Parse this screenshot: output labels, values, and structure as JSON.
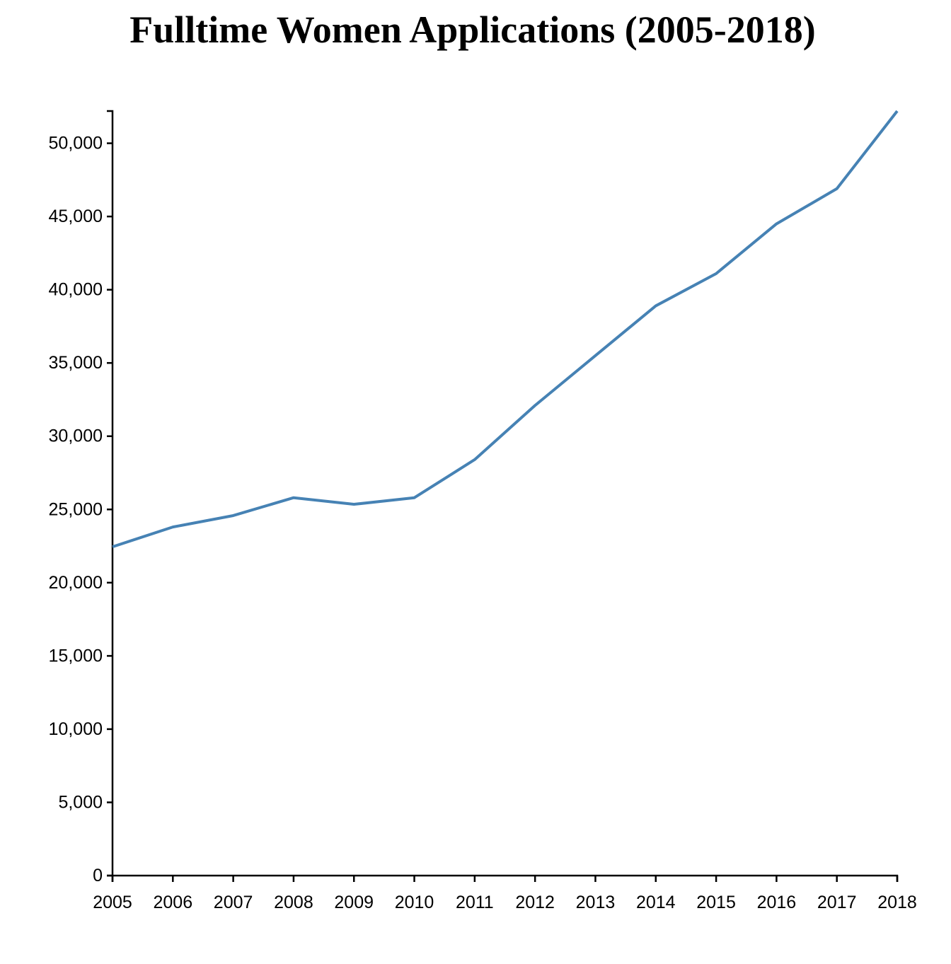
{
  "chart_data": {
    "type": "line",
    "title": "Fulltime Women Applications (2005-2018)",
    "xlabel": "",
    "ylabel": "",
    "x": [
      2005,
      2006,
      2007,
      2008,
      2009,
      2010,
      2011,
      2012,
      2013,
      2014,
      2015,
      2016,
      2017,
      2018
    ],
    "series": [
      {
        "values": [
          22450,
          23800,
          24580,
          25800,
          25350,
          25800,
          28400,
          32100,
          35500,
          38900,
          41100,
          44500,
          46900,
          52200
        ]
      }
    ],
    "xlim": [
      2005,
      2018
    ],
    "ylim": [
      0,
      52200
    ],
    "yticks": [
      0,
      5000,
      10000,
      15000,
      20000,
      25000,
      30000,
      35000,
      40000,
      45000,
      50000
    ],
    "ytick_labels": [
      "0",
      "5,000",
      "10,000",
      "15,000",
      "20,000",
      "25,000",
      "30,000",
      "35,000",
      "40,000",
      "45,000",
      "50,000"
    ],
    "xtick_labels": [
      "2005",
      "2006",
      "2007",
      "2008",
      "2009",
      "2010",
      "2011",
      "2012",
      "2013",
      "2014",
      "2015",
      "2016",
      "2017",
      "2018"
    ],
    "grid": false,
    "legend": "none",
    "line_color": "#4682b4",
    "axis_color": "#000000"
  }
}
